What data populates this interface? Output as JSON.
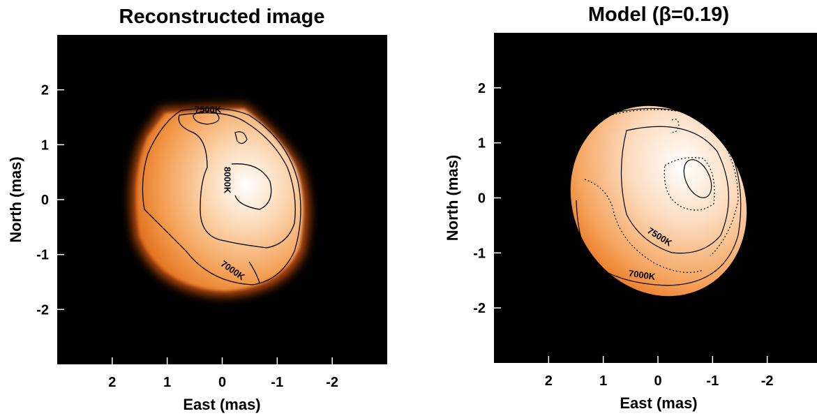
{
  "chart_data": [
    {
      "type": "image",
      "title": "Reconstructed image",
      "xlabel": "East (mas)",
      "ylabel": "North (mas)",
      "xlim": [
        3,
        -3
      ],
      "ylim": [
        -3,
        3
      ],
      "xticks": [
        2,
        1,
        0,
        -1,
        -2
      ],
      "yticks": [
        2,
        1,
        0,
        -1,
        -2
      ],
      "annotations": [
        "7500K",
        "8000K",
        "7000K"
      ]
    },
    {
      "type": "image",
      "title": "Model (β=0.19)",
      "xlabel": "East (mas)",
      "ylabel": "North (mas)",
      "xlim": [
        3,
        -3
      ],
      "ylim": [
        -3,
        3
      ],
      "xticks": [
        2,
        1,
        0,
        -1,
        -2
      ],
      "yticks": [
        2,
        1,
        0,
        -1,
        -2
      ],
      "annotations": [
        "7500K",
        "7000K"
      ]
    }
  ]
}
